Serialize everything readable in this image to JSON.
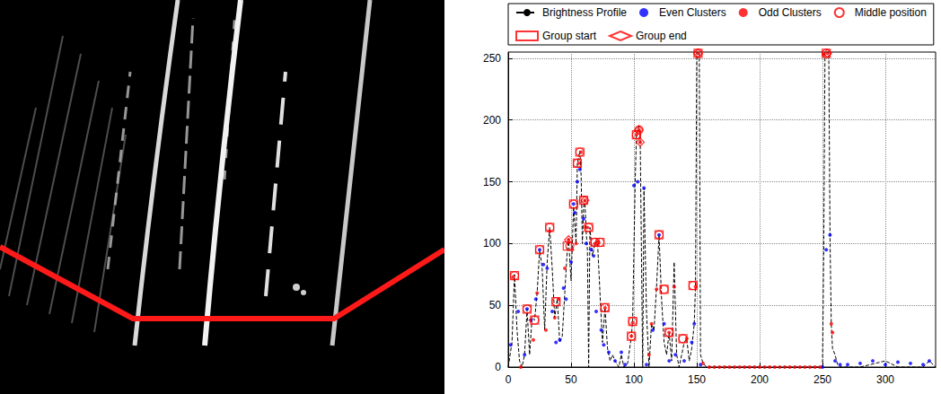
{
  "chart_data": {
    "type": "line",
    "xlim": [
      0,
      340
    ],
    "xticks": [
      0,
      50,
      100,
      150,
      200,
      250,
      300
    ],
    "ylim": [
      0,
      255
    ],
    "yticks": [
      0,
      50,
      100,
      150,
      200,
      250
    ],
    "grid": true,
    "legend": "top",
    "series": [
      {
        "name": "Brightness Profile",
        "type": "line",
        "color": "#000000",
        "line_style": "dashed",
        "x": [
          0,
          3,
          5,
          7,
          9,
          11,
          13,
          15,
          17,
          19,
          21,
          23,
          25,
          27,
          29,
          31,
          33,
          35,
          37,
          39,
          41,
          43,
          45,
          47,
          48,
          50,
          52,
          54,
          55,
          57,
          58,
          59,
          60,
          61,
          62,
          63,
          64,
          65,
          67,
          69,
          71,
          73,
          75,
          77,
          79,
          81,
          83,
          85,
          88,
          90,
          92,
          95,
          98,
          99,
          101,
          102,
          104,
          105,
          107,
          108,
          110,
          112,
          114,
          116,
          118,
          120,
          122,
          124,
          126,
          128,
          130,
          132,
          134,
          136,
          140,
          142,
          144,
          146,
          148,
          149,
          150,
          152,
          153,
          155,
          158,
          250,
          251,
          252,
          255,
          256,
          257,
          258,
          260,
          262,
          265,
          280,
          300,
          310,
          320,
          330,
          335,
          340
        ],
        "values": [
          0,
          20,
          75,
          30,
          5,
          0,
          10,
          47,
          10,
          40,
          38,
          60,
          95,
          80,
          30,
          85,
          113,
          80,
          40,
          55,
          20,
          25,
          60,
          95,
          104,
          70,
          130,
          100,
          165,
          175,
          155,
          100,
          130,
          135,
          110,
          95,
          0,
          113,
          90,
          100,
          102,
          60,
          20,
          48,
          15,
          5,
          10,
          5,
          0,
          10,
          0,
          3,
          25,
          38,
          150,
          188,
          195,
          185,
          0,
          145,
          45,
          0,
          35,
          30,
          65,
          107,
          55,
          20,
          10,
          28,
          5,
          85,
          10,
          0,
          20,
          23,
          5,
          15,
          35,
          66,
          255,
          255,
          10,
          3,
          0,
          0,
          95,
          255,
          255,
          105,
          35,
          15,
          10,
          2,
          0,
          0,
          5,
          0,
          0,
          0,
          5,
          0
        ]
      },
      {
        "name": "Even Clusters",
        "type": "scatter",
        "color": "#0000ff",
        "marker": "dot",
        "x": [
          2,
          8,
          13,
          15,
          18,
          22,
          25,
          28,
          31,
          35,
          38,
          41,
          44,
          46,
          50,
          52,
          53,
          55,
          57,
          60,
          62,
          66,
          68,
          70,
          74,
          76,
          80,
          85,
          90,
          93,
          100,
          103,
          108,
          110,
          115,
          120,
          124,
          128,
          133,
          140,
          146,
          148,
          153,
          250,
          253,
          256,
          260,
          264,
          270,
          280,
          290,
          300,
          310,
          320,
          330,
          335
        ],
        "values": [
          18,
          45,
          10,
          47,
          38,
          55,
          95,
          83,
          80,
          45,
          20,
          22,
          64,
          55,
          85,
          132,
          125,
          150,
          160,
          120,
          100,
          95,
          90,
          45,
          30,
          18,
          12,
          5,
          12,
          2,
          147,
          150,
          145,
          2,
          30,
          107,
          35,
          5,
          10,
          5,
          20,
          35,
          2,
          0,
          95,
          107,
          5,
          2,
          2,
          3,
          5,
          2,
          4,
          3,
          2,
          5
        ]
      },
      {
        "name": "Odd Clusters",
        "type": "scatter",
        "color": "#ff0000",
        "marker": "dot",
        "x": [
          4,
          10,
          20,
          23,
          30,
          33,
          37,
          40,
          45,
          48,
          51,
          54,
          56,
          58,
          61,
          63,
          69,
          72,
          77,
          98,
          99,
          102,
          104,
          105,
          112,
          114,
          118,
          128,
          132,
          142,
          149,
          151,
          155,
          160,
          164,
          168,
          172,
          176,
          180,
          184,
          188,
          192,
          196,
          200,
          204,
          208,
          212,
          216,
          220,
          224,
          228,
          232,
          236,
          240,
          244,
          248,
          251,
          254,
          257,
          258
        ],
        "values": [
          73,
          0,
          22,
          60,
          30,
          110,
          40,
          55,
          80,
          103,
          95,
          100,
          165,
          174,
          135,
          113,
          100,
          101,
          48,
          25,
          36,
          188,
          192,
          182,
          10,
          35,
          63,
          28,
          65,
          23,
          65,
          254,
          3,
          0,
          0,
          0,
          0,
          0,
          0,
          0,
          0,
          0,
          0,
          0,
          0,
          0,
          0,
          0,
          0,
          0,
          0,
          0,
          0,
          0,
          0,
          0,
          253,
          254,
          35,
          28
        ]
      },
      {
        "name": "Middle position",
        "type": "scatter",
        "color": "#ff0000",
        "marker": "circle",
        "x": [
          5,
          15,
          21,
          25,
          33,
          38,
          49,
          52,
          55,
          57,
          60,
          64,
          69,
          73,
          77,
          98,
          99,
          102,
          104,
          120,
          124,
          128,
          139,
          147,
          151,
          253
        ],
        "values": [
          74,
          47,
          38,
          95,
          113,
          53,
          98,
          132,
          165,
          174,
          135,
          113,
          101,
          101,
          48,
          25,
          37,
          188,
          192,
          107,
          63,
          28,
          23,
          66,
          254,
          254
        ]
      },
      {
        "name": "Group start",
        "type": "scatter",
        "color": "#ff0000",
        "marker": "square",
        "x": [
          5,
          15,
          21,
          25,
          33,
          38,
          47,
          52,
          55,
          57,
          60,
          64,
          69,
          73,
          77,
          98,
          99,
          102,
          120,
          124,
          128,
          139,
          147,
          151,
          253
        ],
        "values": [
          74,
          47,
          38,
          95,
          113,
          53,
          98,
          132,
          165,
          174,
          135,
          113,
          101,
          101,
          48,
          25,
          37,
          188,
          107,
          63,
          28,
          23,
          66,
          254,
          254
        ]
      },
      {
        "name": "Group end",
        "type": "scatter",
        "color": "#ff0000",
        "marker": "diamond",
        "x": [
          48,
          61,
          104,
          105,
          151,
          254
        ],
        "values": [
          103,
          135,
          192,
          182,
          254,
          254
        ]
      }
    ]
  }
}
